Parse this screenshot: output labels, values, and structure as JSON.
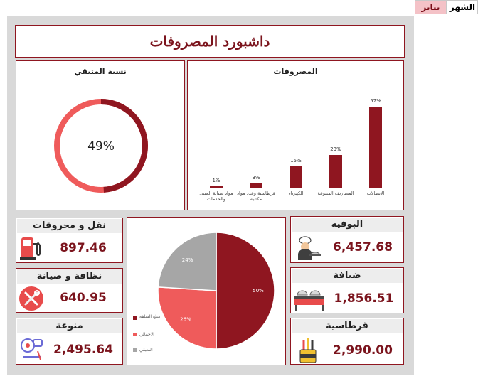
{
  "header": {
    "month_label": "الشهر",
    "month_value": "يناير"
  },
  "dashboard": {
    "title": "داشبورد المصروفات"
  },
  "remaining": {
    "title": "نسبة المتبقي",
    "value_text": "49%",
    "fraction": 0.49
  },
  "expenses": {
    "title": "المصروفات",
    "chart_data": {
      "type": "bar",
      "categories": [
        "الاتصالات",
        "المصاريف المتنوعة",
        "الكهرباء",
        "قرطاسية وعدد مواد مكتبية",
        "مواد صيانة المبنى والخدمات"
      ],
      "values": [
        57,
        23,
        15,
        3,
        1
      ],
      "value_labels": [
        "57%",
        "23%",
        "15%",
        "3%",
        "1%"
      ],
      "ylim": [
        0,
        60
      ]
    }
  },
  "budget_pie": {
    "chart_data": {
      "type": "pie",
      "labels": [
        "مبلغ السلفة",
        "الاجمالي",
        "المتبقي"
      ],
      "values": [
        50,
        26,
        24
      ],
      "value_labels": [
        "50%",
        "26%",
        "24%"
      ],
      "colors": [
        "#8f1620",
        "#ef5b5b",
        "#a6a6a6"
      ]
    }
  },
  "kpis": {
    "fuel": {
      "label": "نقل و محروقات",
      "value": "897.46",
      "icon": "fuel-pump-icon"
    },
    "cleaning": {
      "label": "نظافة و صيانة",
      "value": "640.95",
      "icon": "tools-icon"
    },
    "misc": {
      "label": "منوعة",
      "value": "2,495.64",
      "icon": "misc-icon"
    },
    "buffet": {
      "label": "البوفيه",
      "value": "6,457.68",
      "icon": "chef-icon"
    },
    "hospitality": {
      "label": "ضيافة",
      "value": "1,856.51",
      "icon": "buffet-table-icon"
    },
    "stationery": {
      "label": "قرطاسية",
      "value": "2,990.00",
      "icon": "pencil-cup-icon"
    }
  },
  "colors": {
    "accent": "#8f1620",
    "accent_light": "#ef5b5b",
    "neutral": "#a6a6a6",
    "title": "#7b141d"
  }
}
